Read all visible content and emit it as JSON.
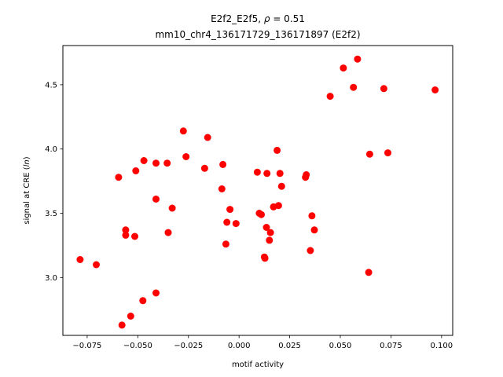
{
  "chart_data": {
    "type": "scatter",
    "title_line1": "E2f2_E2f5, ρ = 0.51",
    "title_line2": "mm10_chr4_136171729_136171897 (E2f2)",
    "xlabel": "motif activity",
    "ylabel": "signal at CRE (ln)",
    "xlim": [
      -0.087,
      0.1055
    ],
    "ylim": [
      2.55,
      4.805
    ],
    "xticks": [
      -0.075,
      -0.05,
      -0.025,
      0.0,
      0.025,
      0.05,
      0.075,
      0.1
    ],
    "xtick_labels": [
      "−0.075",
      "−0.050",
      "−0.025",
      "0.000",
      "0.025",
      "0.050",
      "0.075",
      "0.100"
    ],
    "yticks": [
      3.0,
      3.5,
      4.0,
      4.5
    ],
    "ytick_labels": [
      "3.0",
      "3.5",
      "4.0",
      "4.5"
    ],
    "grid": false,
    "marker_color": "#ff0000",
    "points": [
      {
        "x": -0.0785,
        "y": 3.14
      },
      {
        "x": -0.0705,
        "y": 3.1
      },
      {
        "x": -0.0595,
        "y": 3.78
      },
      {
        "x": -0.0578,
        "y": 2.63
      },
      {
        "x": -0.056,
        "y": 3.37
      },
      {
        "x": -0.056,
        "y": 3.33
      },
      {
        "x": -0.0535,
        "y": 2.7
      },
      {
        "x": -0.0515,
        "y": 3.32
      },
      {
        "x": -0.051,
        "y": 3.83
      },
      {
        "x": -0.0475,
        "y": 2.82
      },
      {
        "x": -0.047,
        "y": 3.91
      },
      {
        "x": -0.041,
        "y": 3.89
      },
      {
        "x": -0.041,
        "y": 3.61
      },
      {
        "x": -0.041,
        "y": 2.88
      },
      {
        "x": -0.0355,
        "y": 3.89
      },
      {
        "x": -0.035,
        "y": 3.35
      },
      {
        "x": -0.033,
        "y": 3.54
      },
      {
        "x": -0.0275,
        "y": 4.14
      },
      {
        "x": -0.0262,
        "y": 3.94
      },
      {
        "x": -0.017,
        "y": 3.85
      },
      {
        "x": -0.0155,
        "y": 4.09
      },
      {
        "x": -0.0085,
        "y": 3.69
      },
      {
        "x": -0.008,
        "y": 3.88
      },
      {
        "x": -0.0065,
        "y": 3.26
      },
      {
        "x": -0.006,
        "y": 3.43
      },
      {
        "x": -0.0045,
        "y": 3.53
      },
      {
        "x": -0.0015,
        "y": 3.42
      },
      {
        "x": 0.009,
        "y": 3.82
      },
      {
        "x": 0.01,
        "y": 3.5
      },
      {
        "x": 0.011,
        "y": 3.49
      },
      {
        "x": 0.0125,
        "y": 3.16
      },
      {
        "x": 0.0128,
        "y": 3.15
      },
      {
        "x": 0.0135,
        "y": 3.39
      },
      {
        "x": 0.0138,
        "y": 3.81
      },
      {
        "x": 0.015,
        "y": 3.29
      },
      {
        "x": 0.0155,
        "y": 3.35
      },
      {
        "x": 0.017,
        "y": 3.55
      },
      {
        "x": 0.0188,
        "y": 3.99
      },
      {
        "x": 0.0195,
        "y": 3.56
      },
      {
        "x": 0.0202,
        "y": 3.81
      },
      {
        "x": 0.021,
        "y": 3.71
      },
      {
        "x": 0.0328,
        "y": 3.78
      },
      {
        "x": 0.0332,
        "y": 3.8
      },
      {
        "x": 0.0352,
        "y": 3.21
      },
      {
        "x": 0.036,
        "y": 3.48
      },
      {
        "x": 0.0372,
        "y": 3.37
      },
      {
        "x": 0.045,
        "y": 4.41
      },
      {
        "x": 0.0515,
        "y": 4.63
      },
      {
        "x": 0.0565,
        "y": 4.48
      },
      {
        "x": 0.0585,
        "y": 4.7
      },
      {
        "x": 0.064,
        "y": 3.04
      },
      {
        "x": 0.0645,
        "y": 3.96
      },
      {
        "x": 0.0715,
        "y": 4.47
      },
      {
        "x": 0.0735,
        "y": 3.97
      },
      {
        "x": 0.0968,
        "y": 4.46
      }
    ]
  }
}
